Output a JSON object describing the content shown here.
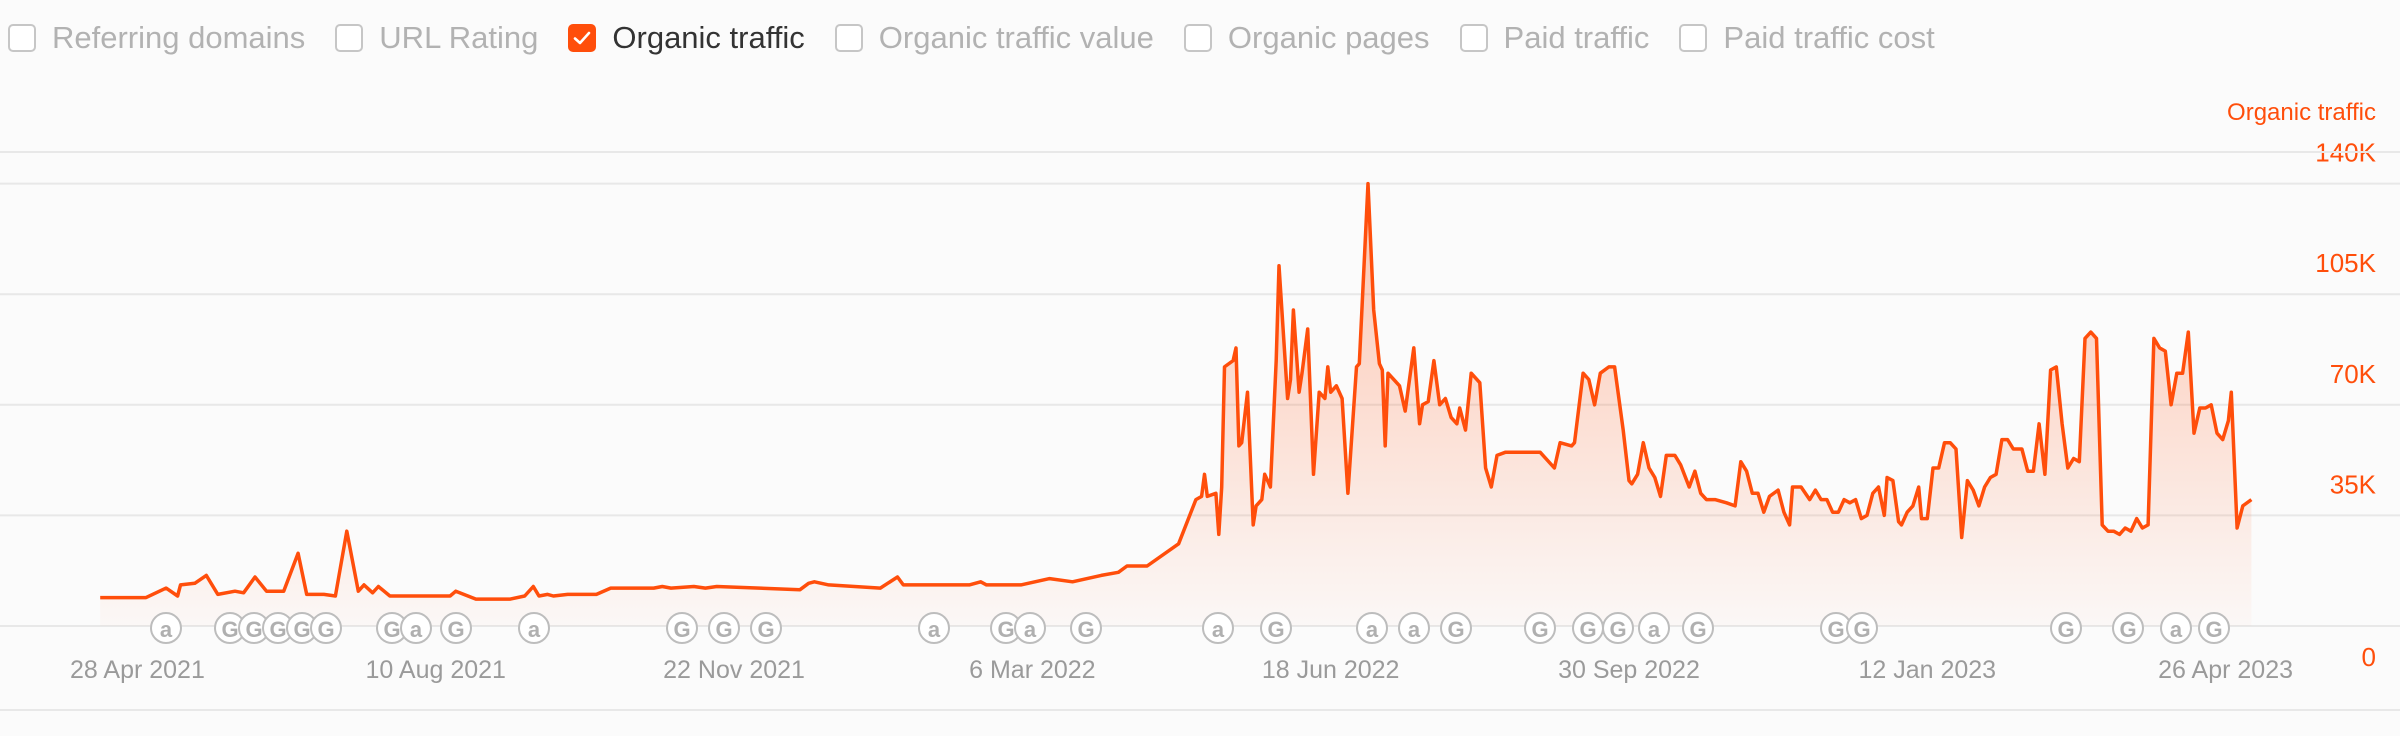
{
  "legend": {
    "items": [
      {
        "label": "Referring domains",
        "checked": false
      },
      {
        "label": "URL Rating",
        "checked": false
      },
      {
        "label": "Organic traffic",
        "checked": true
      },
      {
        "label": "Organic traffic value",
        "checked": false
      },
      {
        "label": "Organic pages",
        "checked": false
      },
      {
        "label": "Paid traffic",
        "checked": false
      },
      {
        "label": "Paid traffic cost",
        "checked": false
      }
    ]
  },
  "colors": {
    "accent": "#ff4e0b",
    "grid": "#e8e8e8",
    "muted": "#9a9a9a"
  },
  "chart_data": {
    "type": "area",
    "series": [
      {
        "name": "Organic traffic"
      }
    ],
    "ylabel": "Organic traffic",
    "ylim": [
      0,
      150000
    ],
    "yticks": [
      {
        "value": 0,
        "label": "0"
      },
      {
        "value": 35000,
        "label": "35K"
      },
      {
        "value": 70000,
        "label": "70K"
      },
      {
        "value": 105000,
        "label": "105K"
      },
      {
        "value": 140000,
        "label": "140K"
      }
    ],
    "xlim": [
      "2021-04-01",
      "2023-05-08"
    ],
    "xticks": [
      {
        "date": "2021-04-28",
        "label": "28 Apr 2021"
      },
      {
        "date": "2021-08-10",
        "label": "10 Aug 2021"
      },
      {
        "date": "2021-11-22",
        "label": "22 Nov 2021"
      },
      {
        "date": "2022-03-06",
        "label": "6 Mar 2022"
      },
      {
        "date": "2022-06-18",
        "label": "18 Jun 2022"
      },
      {
        "date": "2022-09-30",
        "label": "30 Sep 2022"
      },
      {
        "date": "2023-01-12",
        "label": "12 Jan 2023"
      },
      {
        "date": "2023-04-26",
        "label": "26 Apr 2023"
      }
    ],
    "grid": true,
    "points": [
      [
        "2021-04-15",
        9000
      ],
      [
        "2021-05-01",
        9000
      ],
      [
        "2021-05-08",
        12000
      ],
      [
        "2021-05-12",
        9500
      ],
      [
        "2021-05-13",
        13000
      ],
      [
        "2021-05-18",
        13500
      ],
      [
        "2021-05-22",
        16000
      ],
      [
        "2021-05-26",
        10000
      ],
      [
        "2021-06-01",
        11000
      ],
      [
        "2021-06-04",
        10500
      ],
      [
        "2021-06-08",
        15500
      ],
      [
        "2021-06-12",
        11000
      ],
      [
        "2021-06-18",
        11000
      ],
      [
        "2021-06-23",
        23000
      ],
      [
        "2021-06-26",
        10000
      ],
      [
        "2021-07-02",
        10000
      ],
      [
        "2021-07-06",
        9500
      ],
      [
        "2021-07-10",
        30000
      ],
      [
        "2021-07-14",
        11000
      ],
      [
        "2021-07-16",
        13000
      ],
      [
        "2021-07-19",
        10500
      ],
      [
        "2021-07-21",
        12500
      ],
      [
        "2021-07-25",
        9500
      ],
      [
        "2021-08-15",
        9500
      ],
      [
        "2021-08-17",
        11000
      ],
      [
        "2021-08-24",
        8500
      ],
      [
        "2021-09-05",
        8500
      ],
      [
        "2021-09-10",
        9500
      ],
      [
        "2021-09-13",
        12500
      ],
      [
        "2021-09-15",
        9500
      ],
      [
        "2021-09-18",
        10000
      ],
      [
        "2021-09-20",
        9500
      ],
      [
        "2021-09-25",
        10000
      ],
      [
        "2021-10-05",
        10000
      ],
      [
        "2021-10-10",
        12000
      ],
      [
        "2021-10-25",
        12000
      ],
      [
        "2021-10-28",
        12500
      ],
      [
        "2021-10-31",
        12000
      ],
      [
        "2021-11-08",
        12500
      ],
      [
        "2021-11-12",
        12000
      ],
      [
        "2021-11-16",
        12500
      ],
      [
        "2021-12-15",
        11500
      ],
      [
        "2021-12-18",
        13500
      ],
      [
        "2021-12-20",
        14000
      ],
      [
        "2021-12-25",
        13000
      ],
      [
        "2022-01-12",
        12000
      ],
      [
        "2022-01-18",
        15500
      ],
      [
        "2022-01-20",
        13000
      ],
      [
        "2022-02-12",
        13000
      ],
      [
        "2022-02-16",
        14000
      ],
      [
        "2022-02-18",
        13000
      ],
      [
        "2022-03-02",
        13000
      ],
      [
        "2022-03-12",
        15000
      ],
      [
        "2022-03-20",
        14000
      ],
      [
        "2022-03-30",
        16000
      ],
      [
        "2022-04-05",
        17000
      ],
      [
        "2022-04-08",
        19000
      ],
      [
        "2022-04-15",
        19000
      ],
      [
        "2022-04-26",
        26000
      ],
      [
        "2022-05-02",
        40000
      ],
      [
        "2022-05-04",
        41000
      ],
      [
        "2022-05-05",
        48000
      ],
      [
        "2022-05-06",
        41000
      ],
      [
        "2022-05-09",
        42000
      ],
      [
        "2022-05-10",
        29000
      ],
      [
        "2022-05-11",
        44000
      ],
      [
        "2022-05-12",
        82000
      ],
      [
        "2022-05-15",
        84000
      ],
      [
        "2022-05-16",
        88000
      ],
      [
        "2022-05-17",
        57000
      ],
      [
        "2022-05-18",
        58000
      ],
      [
        "2022-05-20",
        74000
      ],
      [
        "2022-05-22",
        32000
      ],
      [
        "2022-05-23",
        38000
      ],
      [
        "2022-05-25",
        40000
      ],
      [
        "2022-05-26",
        48000
      ],
      [
        "2022-05-27",
        46000
      ],
      [
        "2022-05-28",
        44000
      ],
      [
        "2022-05-30",
        84000
      ],
      [
        "2022-05-31",
        114000
      ],
      [
        "2022-06-03",
        72000
      ],
      [
        "2022-06-04",
        78000
      ],
      [
        "2022-06-05",
        100000
      ],
      [
        "2022-06-07",
        74000
      ],
      [
        "2022-06-08",
        80000
      ],
      [
        "2022-06-10",
        94000
      ],
      [
        "2022-06-12",
        48000
      ],
      [
        "2022-06-14",
        74000
      ],
      [
        "2022-06-16",
        72000
      ],
      [
        "2022-06-17",
        82000
      ],
      [
        "2022-06-18",
        74000
      ],
      [
        "2022-06-20",
        76000
      ],
      [
        "2022-06-22",
        72000
      ],
      [
        "2022-06-24",
        42000
      ],
      [
        "2022-06-27",
        82000
      ],
      [
        "2022-06-28",
        83000
      ],
      [
        "2022-07-01",
        140000
      ],
      [
        "2022-07-03",
        100000
      ],
      [
        "2022-07-05",
        83000
      ],
      [
        "2022-07-06",
        81000
      ],
      [
        "2022-07-07",
        57000
      ],
      [
        "2022-07-08",
        80000
      ],
      [
        "2022-07-12",
        76000
      ],
      [
        "2022-07-14",
        68000
      ],
      [
        "2022-07-17",
        88000
      ],
      [
        "2022-07-19",
        64000
      ],
      [
        "2022-07-20",
        70000
      ],
      [
        "2022-07-22",
        71000
      ],
      [
        "2022-07-24",
        84000
      ],
      [
        "2022-07-26",
        70000
      ],
      [
        "2022-07-28",
        72000
      ],
      [
        "2022-07-30",
        66000
      ],
      [
        "2022-08-01",
        64000
      ],
      [
        "2022-08-02",
        69000
      ],
      [
        "2022-08-04",
        62000
      ],
      [
        "2022-08-06",
        80000
      ],
      [
        "2022-08-09",
        77000
      ],
      [
        "2022-08-11",
        50000
      ],
      [
        "2022-08-13",
        44000
      ],
      [
        "2022-08-15",
        54000
      ],
      [
        "2022-08-18",
        55000
      ],
      [
        "2022-08-30",
        55000
      ],
      [
        "2022-09-04",
        50000
      ],
      [
        "2022-09-06",
        58000
      ],
      [
        "2022-09-10",
        57000
      ],
      [
        "2022-09-11",
        58000
      ],
      [
        "2022-09-14",
        80000
      ],
      [
        "2022-09-16",
        78000
      ],
      [
        "2022-09-18",
        70000
      ],
      [
        "2022-09-20",
        80000
      ],
      [
        "2022-09-23",
        82000
      ],
      [
        "2022-09-25",
        82000
      ],
      [
        "2022-09-28",
        62000
      ],
      [
        "2022-09-30",
        46000
      ],
      [
        "2022-10-01",
        45000
      ],
      [
        "2022-10-03",
        48000
      ],
      [
        "2022-10-05",
        58000
      ],
      [
        "2022-10-07",
        50000
      ],
      [
        "2022-10-09",
        47000
      ],
      [
        "2022-10-11",
        41000
      ],
      [
        "2022-10-13",
        54000
      ],
      [
        "2022-10-16",
        54000
      ],
      [
        "2022-10-18",
        51000
      ],
      [
        "2022-10-21",
        44000
      ],
      [
        "2022-10-23",
        49000
      ],
      [
        "2022-10-25",
        42000
      ],
      [
        "2022-10-27",
        40000
      ],
      [
        "2022-10-30",
        40000
      ],
      [
        "2022-11-03",
        39000
      ],
      [
        "2022-11-06",
        38000
      ],
      [
        "2022-11-08",
        52000
      ],
      [
        "2022-11-10",
        49000
      ],
      [
        "2022-11-12",
        42000
      ],
      [
        "2022-11-14",
        42000
      ],
      [
        "2022-11-16",
        36000
      ],
      [
        "2022-11-18",
        41000
      ],
      [
        "2022-11-21",
        43000
      ],
      [
        "2022-11-23",
        36000
      ],
      [
        "2022-11-25",
        32000
      ],
      [
        "2022-11-26",
        44000
      ],
      [
        "2022-11-29",
        44000
      ],
      [
        "2022-12-02",
        40000
      ],
      [
        "2022-12-04",
        43000
      ],
      [
        "2022-12-06",
        40000
      ],
      [
        "2022-12-08",
        40000
      ],
      [
        "2022-12-10",
        36000
      ],
      [
        "2022-12-12",
        36000
      ],
      [
        "2022-12-14",
        40000
      ],
      [
        "2022-12-16",
        39000
      ],
      [
        "2022-12-18",
        40000
      ],
      [
        "2022-12-20",
        34000
      ],
      [
        "2022-12-22",
        35000
      ],
      [
        "2022-12-24",
        42000
      ],
      [
        "2022-12-26",
        44000
      ],
      [
        "2022-12-28",
        35000
      ],
      [
        "2022-12-29",
        47000
      ],
      [
        "2022-12-31",
        46000
      ],
      [
        "2023-01-02",
        33000
      ],
      [
        "2023-01-03",
        32000
      ],
      [
        "2023-01-05",
        36000
      ],
      [
        "2023-01-07",
        38000
      ],
      [
        "2023-01-09",
        44000
      ],
      [
        "2023-01-10",
        34000
      ],
      [
        "2023-01-12",
        34000
      ],
      [
        "2023-01-14",
        50000
      ],
      [
        "2023-01-16",
        50000
      ],
      [
        "2023-01-18",
        58000
      ],
      [
        "2023-01-20",
        58000
      ],
      [
        "2023-01-22",
        56000
      ],
      [
        "2023-01-24",
        28000
      ],
      [
        "2023-01-26",
        46000
      ],
      [
        "2023-01-28",
        43000
      ],
      [
        "2023-01-30",
        38000
      ],
      [
        "2023-02-01",
        44000
      ],
      [
        "2023-02-03",
        47000
      ],
      [
        "2023-02-05",
        48000
      ],
      [
        "2023-02-07",
        59000
      ],
      [
        "2023-02-09",
        59000
      ],
      [
        "2023-02-11",
        56000
      ],
      [
        "2023-02-14",
        56000
      ],
      [
        "2023-02-16",
        49000
      ],
      [
        "2023-02-18",
        49000
      ],
      [
        "2023-02-20",
        64000
      ],
      [
        "2023-02-22",
        48000
      ],
      [
        "2023-02-24",
        81000
      ],
      [
        "2023-02-26",
        82000
      ],
      [
        "2023-02-28",
        64000
      ],
      [
        "2023-03-02",
        50000
      ],
      [
        "2023-03-04",
        53000
      ],
      [
        "2023-03-06",
        52000
      ],
      [
        "2023-03-08",
        91000
      ],
      [
        "2023-03-10",
        93000
      ],
      [
        "2023-03-12",
        91000
      ],
      [
        "2023-03-14",
        32000
      ],
      [
        "2023-03-16",
        30000
      ],
      [
        "2023-03-18",
        30000
      ],
      [
        "2023-03-20",
        29000
      ],
      [
        "2023-03-22",
        31000
      ],
      [
        "2023-03-24",
        30000
      ],
      [
        "2023-03-26",
        34000
      ],
      [
        "2023-03-28",
        31000
      ],
      [
        "2023-03-30",
        32000
      ],
      [
        "2023-04-01",
        91000
      ],
      [
        "2023-04-03",
        88000
      ],
      [
        "2023-04-05",
        87000
      ],
      [
        "2023-04-07",
        70000
      ],
      [
        "2023-04-09",
        80000
      ],
      [
        "2023-04-11",
        80000
      ],
      [
        "2023-04-13",
        93000
      ],
      [
        "2023-04-15",
        61000
      ],
      [
        "2023-04-17",
        69000
      ],
      [
        "2023-04-19",
        69000
      ],
      [
        "2023-04-21",
        70000
      ],
      [
        "2023-04-23",
        61000
      ],
      [
        "2023-04-25",
        59000
      ],
      [
        "2023-04-27",
        65000
      ],
      [
        "2023-04-28",
        74000
      ],
      [
        "2023-04-30",
        31000
      ],
      [
        "2023-05-02",
        38000
      ],
      [
        "2023-05-05",
        40000
      ]
    ]
  }
}
